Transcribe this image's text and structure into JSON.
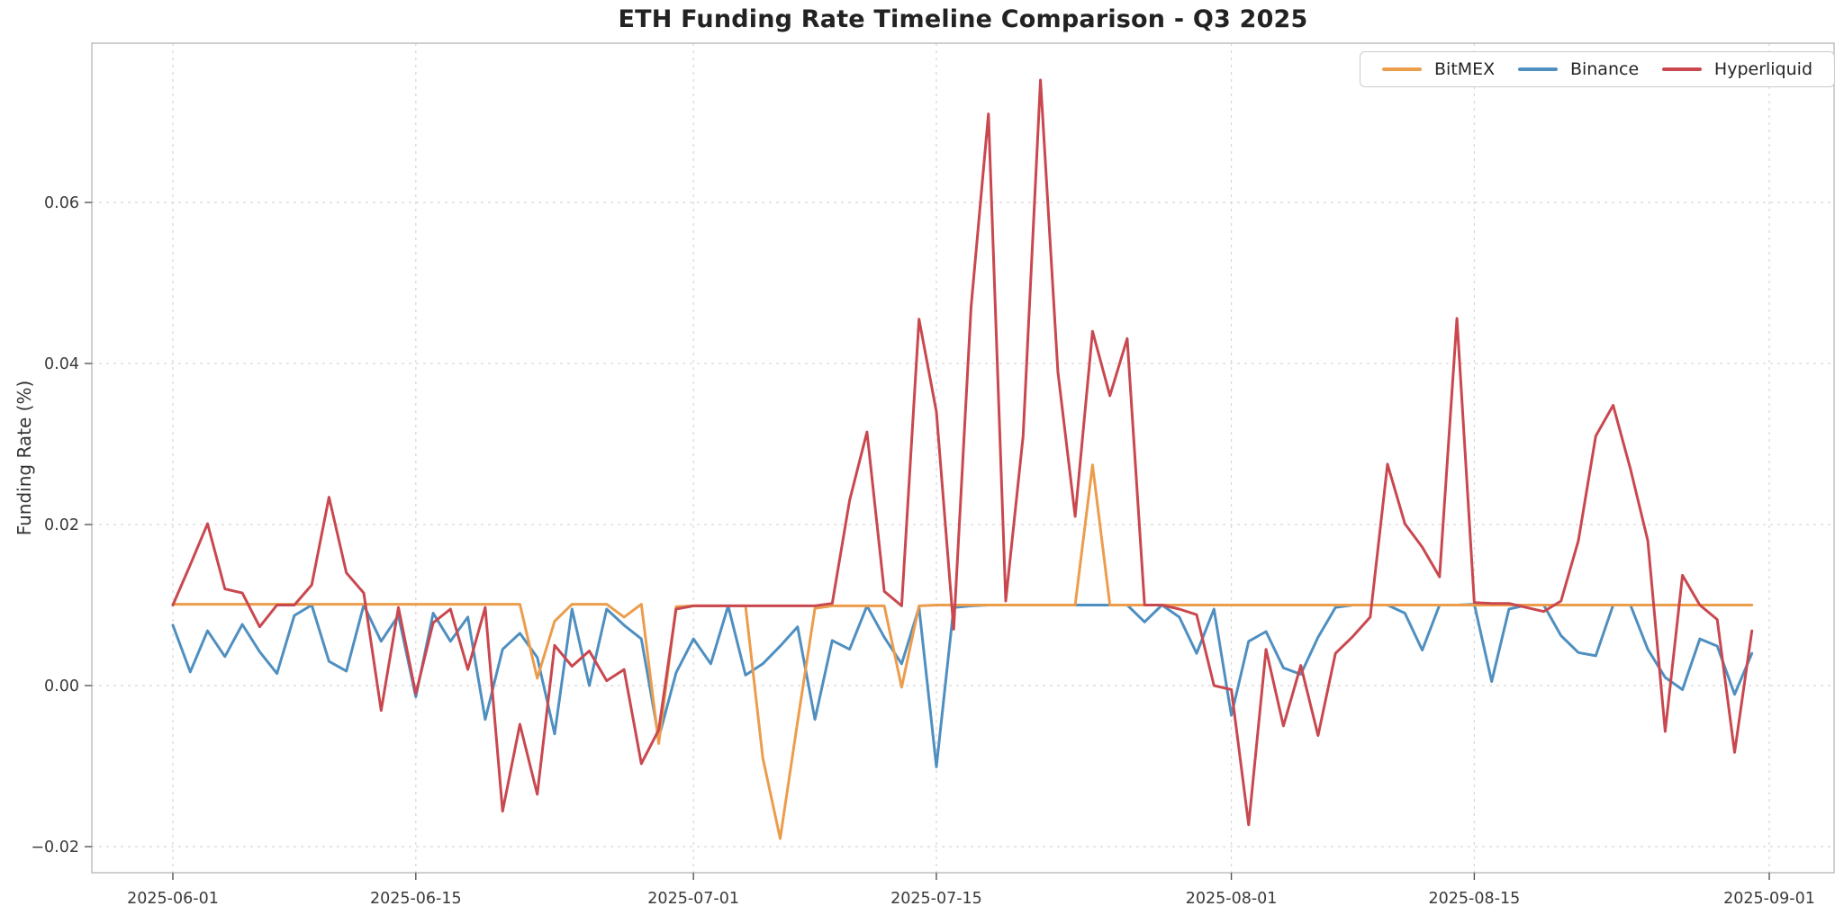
{
  "title": "ETH Funding Rate Timeline Comparison - Q3 2025",
  "chart_data": {
    "type": "line",
    "title": "ETH Funding Rate Timeline Comparison - Q3 2025",
    "xlabel": "",
    "ylabel": "Funding Rate (%)",
    "grid": true,
    "grid_style": "dashed",
    "legend_position": "upper right",
    "background_color": "#ffffff",
    "ylim": [
      -0.0235,
      0.0798
    ],
    "y_ticks": [
      {
        "value": -0.02,
        "label": "−0.02"
      },
      {
        "value": 0.0,
        "label": "0.00"
      },
      {
        "value": 0.02,
        "label": "0.02"
      },
      {
        "value": 0.04,
        "label": "0.04"
      },
      {
        "value": 0.06,
        "label": "0.06"
      }
    ],
    "x_ticks": [
      {
        "day": 0,
        "label": "2025-06-01"
      },
      {
        "day": 14,
        "label": "2025-06-15"
      },
      {
        "day": 30,
        "label": "2025-07-01"
      },
      {
        "day": 44,
        "label": "2025-07-15"
      },
      {
        "day": 61,
        "label": "2025-08-01"
      },
      {
        "day": 75,
        "label": "2025-08-15"
      },
      {
        "day": 92,
        "label": "2025-09-01"
      }
    ],
    "dates": [
      "2025-06-01",
      "2025-06-02",
      "2025-06-03",
      "2025-06-04",
      "2025-06-05",
      "2025-06-06",
      "2025-06-07",
      "2025-06-08",
      "2025-06-09",
      "2025-06-10",
      "2025-06-11",
      "2025-06-12",
      "2025-06-13",
      "2025-06-14",
      "2025-06-15",
      "2025-06-16",
      "2025-06-17",
      "2025-06-18",
      "2025-06-19",
      "2025-06-20",
      "2025-06-21",
      "2025-06-22",
      "2025-06-23",
      "2025-06-24",
      "2025-06-25",
      "2025-06-26",
      "2025-06-27",
      "2025-06-28",
      "2025-06-29",
      "2025-06-30",
      "2025-07-01",
      "2025-07-02",
      "2025-07-03",
      "2025-07-04",
      "2025-07-05",
      "2025-07-06",
      "2025-07-07",
      "2025-07-08",
      "2025-07-09",
      "2025-07-10",
      "2025-07-11",
      "2025-07-12",
      "2025-07-13",
      "2025-07-14",
      "2025-07-15",
      "2025-07-16",
      "2025-07-17",
      "2025-07-18",
      "2025-07-19",
      "2025-07-20",
      "2025-07-21",
      "2025-07-22",
      "2025-07-23",
      "2025-07-24",
      "2025-07-25",
      "2025-07-26",
      "2025-07-27",
      "2025-07-28",
      "2025-07-29",
      "2025-07-30",
      "2025-07-31",
      "2025-08-01",
      "2025-08-02",
      "2025-08-03",
      "2025-08-04",
      "2025-08-05",
      "2025-08-06",
      "2025-08-07",
      "2025-08-08",
      "2025-08-09",
      "2025-08-10",
      "2025-08-11",
      "2025-08-12",
      "2025-08-13",
      "2025-08-14",
      "2025-08-15",
      "2025-08-16",
      "2025-08-17",
      "2025-08-18",
      "2025-08-19",
      "2025-08-20",
      "2025-08-21",
      "2025-08-22",
      "2025-08-23",
      "2025-08-24",
      "2025-08-25",
      "2025-08-26",
      "2025-08-27",
      "2025-08-28",
      "2025-08-29",
      "2025-08-30",
      "2025-08-31"
    ],
    "series": [
      {
        "name": "BitMEX",
        "color": "#ec9d4c",
        "values": [
          0.0101,
          0.0101,
          0.0101,
          0.0101,
          0.0101,
          0.0101,
          0.0101,
          0.0101,
          0.0101,
          0.0101,
          0.0101,
          0.0101,
          0.0101,
          0.0101,
          0.0101,
          0.0101,
          0.0101,
          0.0101,
          0.0101,
          0.0101,
          0.0101,
          0.0009,
          0.008,
          0.0101,
          0.0101,
          0.0101,
          0.0085,
          0.0101,
          -0.0072,
          0.0098,
          0.0099,
          0.0099,
          0.0099,
          0.0099,
          -0.009,
          -0.019,
          -0.0045,
          0.0096,
          0.0099,
          0.0099,
          0.0099,
          0.0099,
          -0.0002,
          0.0099,
          0.01,
          0.01,
          0.01,
          0.01,
          0.01,
          0.01,
          0.01,
          0.01,
          0.01,
          0.0274,
          0.01,
          0.01,
          0.01,
          0.01,
          0.01,
          0.01,
          0.01,
          0.01,
          0.01,
          0.01,
          0.01,
          0.01,
          0.01,
          0.01,
          0.01,
          0.01,
          0.01,
          0.01,
          0.01,
          0.01,
          0.01,
          0.01,
          0.01,
          0.01,
          0.01,
          0.01,
          0.01,
          0.01,
          0.01,
          0.01,
          0.01,
          0.01,
          0.01,
          0.01,
          0.01,
          0.01,
          0.01,
          0.01
        ]
      },
      {
        "name": "Binance",
        "color": "#4f8fc0",
        "values": [
          0.0075,
          0.0017,
          0.0068,
          0.0036,
          0.0076,
          0.0042,
          0.0015,
          0.0087,
          0.01,
          0.003,
          0.0018,
          0.01,
          0.0055,
          0.0087,
          -0.0014,
          0.009,
          0.0055,
          0.0085,
          -0.0042,
          0.0045,
          0.0065,
          0.0035,
          -0.006,
          0.0095,
          0.0,
          0.0095,
          0.0075,
          0.0058,
          -0.0065,
          0.0016,
          0.0058,
          0.0027,
          0.0099,
          0.0013,
          0.0027,
          0.0049,
          0.0073,
          -0.0042,
          0.0056,
          0.0045,
          0.0099,
          0.006,
          0.0027,
          0.0097,
          -0.0101,
          0.0097,
          0.0099,
          0.01,
          0.01,
          0.01,
          0.01,
          0.01,
          0.01,
          0.01,
          0.01,
          0.01,
          0.0079,
          0.01,
          0.0085,
          0.004,
          0.0095,
          -0.0037,
          0.0055,
          0.0067,
          0.0022,
          0.0014,
          0.006,
          0.0097,
          0.01,
          0.01,
          0.01,
          0.009,
          0.0044,
          0.01,
          0.01,
          0.0101,
          0.0005,
          0.0095,
          0.01,
          0.01,
          0.0062,
          0.0041,
          0.0037,
          0.01,
          0.01,
          0.0045,
          0.001,
          -0.0005,
          0.0058,
          0.0049,
          -0.0011,
          0.004
        ]
      },
      {
        "name": "Hyperliquid",
        "color": "#c9484f",
        "values": [
          0.01,
          0.015,
          0.0201,
          0.012,
          0.0115,
          0.0073,
          0.01,
          0.01,
          0.0125,
          0.0234,
          0.014,
          0.0115,
          -0.0031,
          0.0097,
          -0.001,
          0.0078,
          0.0095,
          0.002,
          0.0097,
          -0.0156,
          -0.0048,
          -0.0135,
          0.005,
          0.0024,
          0.0043,
          0.0006,
          0.002,
          -0.0097,
          -0.0055,
          0.0095,
          0.0099,
          0.0099,
          0.0099,
          0.0099,
          0.0099,
          0.0099,
          0.0099,
          0.0099,
          0.0102,
          0.023,
          0.0315,
          0.0117,
          0.0099,
          0.0455,
          0.034,
          0.007,
          0.047,
          0.071,
          0.0105,
          0.031,
          0.0752,
          0.039,
          0.021,
          0.044,
          0.036,
          0.0431,
          0.01,
          0.01,
          0.0095,
          0.0088,
          0.0,
          -0.0005,
          -0.0173,
          0.0045,
          -0.005,
          0.0025,
          -0.0062,
          0.004,
          0.0061,
          0.0085,
          0.0275,
          0.0201,
          0.0172,
          0.0135,
          0.0456,
          0.0103,
          0.0102,
          0.0102,
          0.0097,
          0.0092,
          0.0105,
          0.018,
          0.031,
          0.0348,
          0.0269,
          0.018,
          -0.0057,
          0.0137,
          0.01,
          0.0082,
          -0.0083,
          0.0068
        ]
      }
    ]
  }
}
